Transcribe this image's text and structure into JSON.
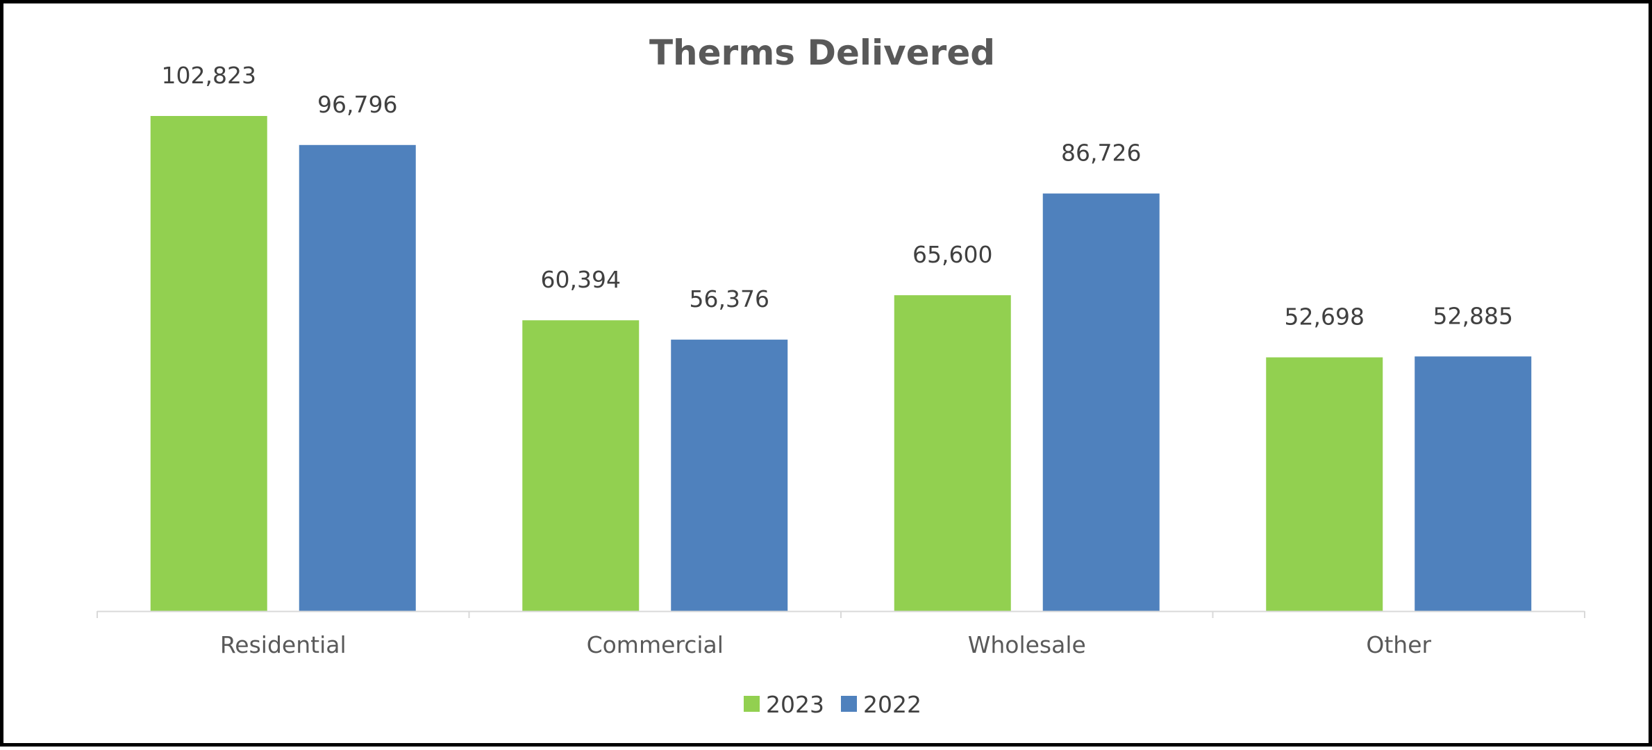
{
  "chart_data": {
    "type": "bar",
    "title": "Therms Delivered",
    "categories": [
      "Residential",
      "Commercial",
      "Wholesale",
      "Other"
    ],
    "series": [
      {
        "name": "2023",
        "values": [
          102823,
          60394,
          65600,
          52698
        ],
        "labels": [
          "102,823",
          "60,394",
          "65,600",
          "52,698"
        ],
        "color": "#92D050"
      },
      {
        "name": "2022",
        "values": [
          96796,
          56376,
          86726,
          52885
        ],
        "labels": [
          "96,796",
          "56,376",
          "86,726",
          "52,885"
        ],
        "color": "#4F81BD"
      }
    ],
    "ylim": [
      0,
      105000
    ],
    "grid": false,
    "legend": "bottom-center",
    "axis_color": "#D9D9D9"
  }
}
